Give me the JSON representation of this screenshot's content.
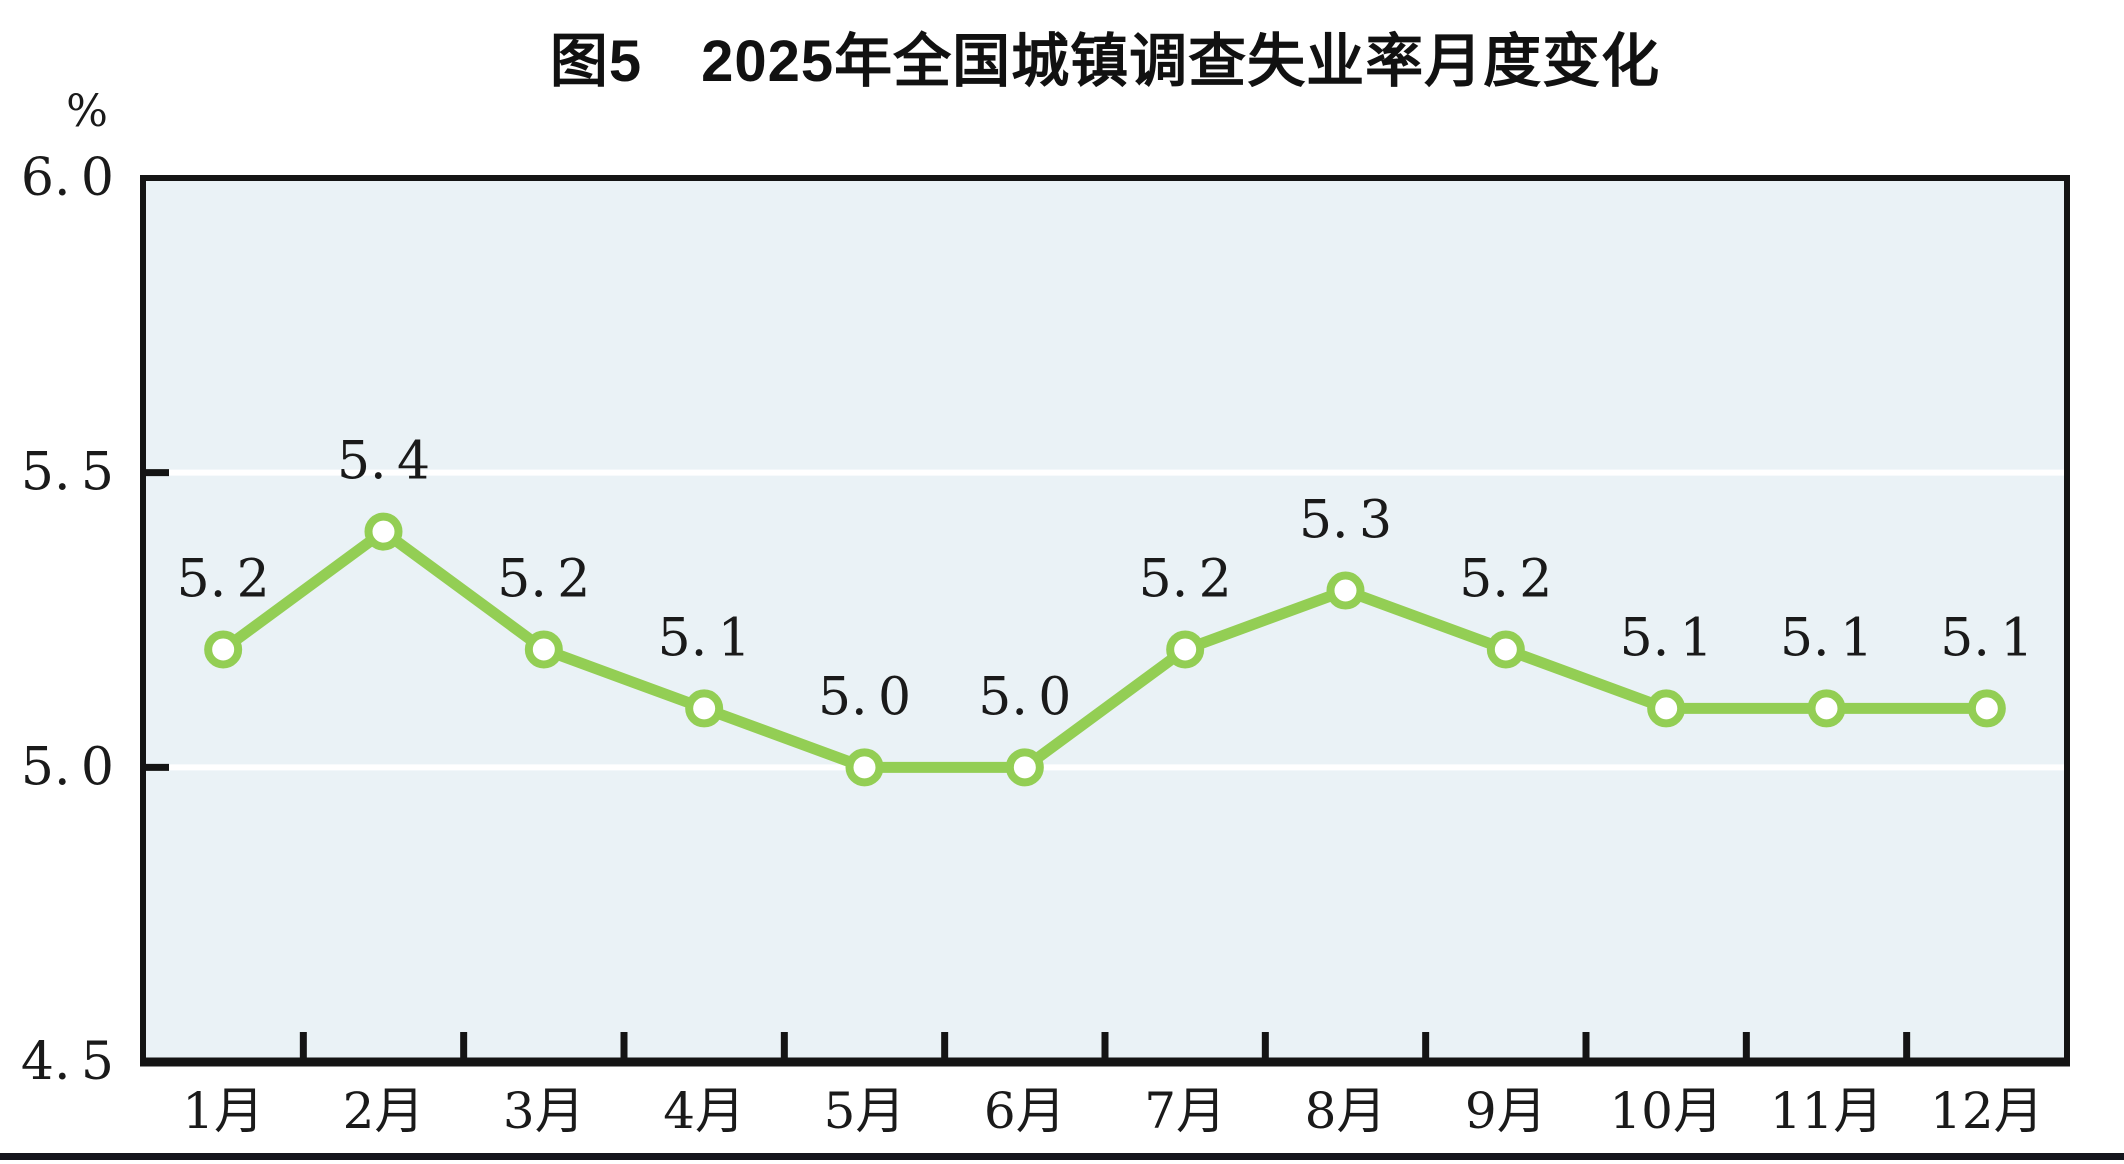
{
  "title": {
    "text": "图5　2025年全国城镇调查失业率月度变化"
  },
  "chart_data": {
    "type": "line",
    "title": "图5　2025年全国城镇调查失业率月度变化",
    "ylabel_unit": "%",
    "categories": [
      "1月",
      "2月",
      "3月",
      "4月",
      "5月",
      "6月",
      "7月",
      "8月",
      "9月",
      "10月",
      "11月",
      "12月"
    ],
    "series": [
      {
        "name": "全国城镇调查失业率",
        "values": [
          5.2,
          5.4,
          5.2,
          5.1,
          5.0,
          5.0,
          5.2,
          5.3,
          5.2,
          5.1,
          5.1,
          5.1
        ]
      }
    ],
    "point_labels": [
      "5.2",
      "5.4",
      "5.2",
      "5.1",
      "5.0",
      "5.0",
      "5.2",
      "5.3",
      "5.2",
      "5.1",
      "5.1",
      "5.1"
    ],
    "ytick_labels": [
      "6.0",
      "5.5",
      "5.0",
      "4.5"
    ],
    "yticks": [
      6.0,
      5.5,
      5.0,
      4.5
    ],
    "ylim": [
      4.5,
      6.0
    ],
    "gridlines_at": [
      5.5,
      5.0
    ],
    "inner_ytick_marks_at": [
      5.5,
      5.0
    ],
    "legend": "none",
    "grid": "horizontal-white",
    "colors": {
      "line": "#93CE54",
      "marker_fill": "#ffffff",
      "plot_bg": "#EAF2F6",
      "axis": "#141414",
      "gridline": "#ffffff",
      "text": "#1a1a1a"
    }
  }
}
